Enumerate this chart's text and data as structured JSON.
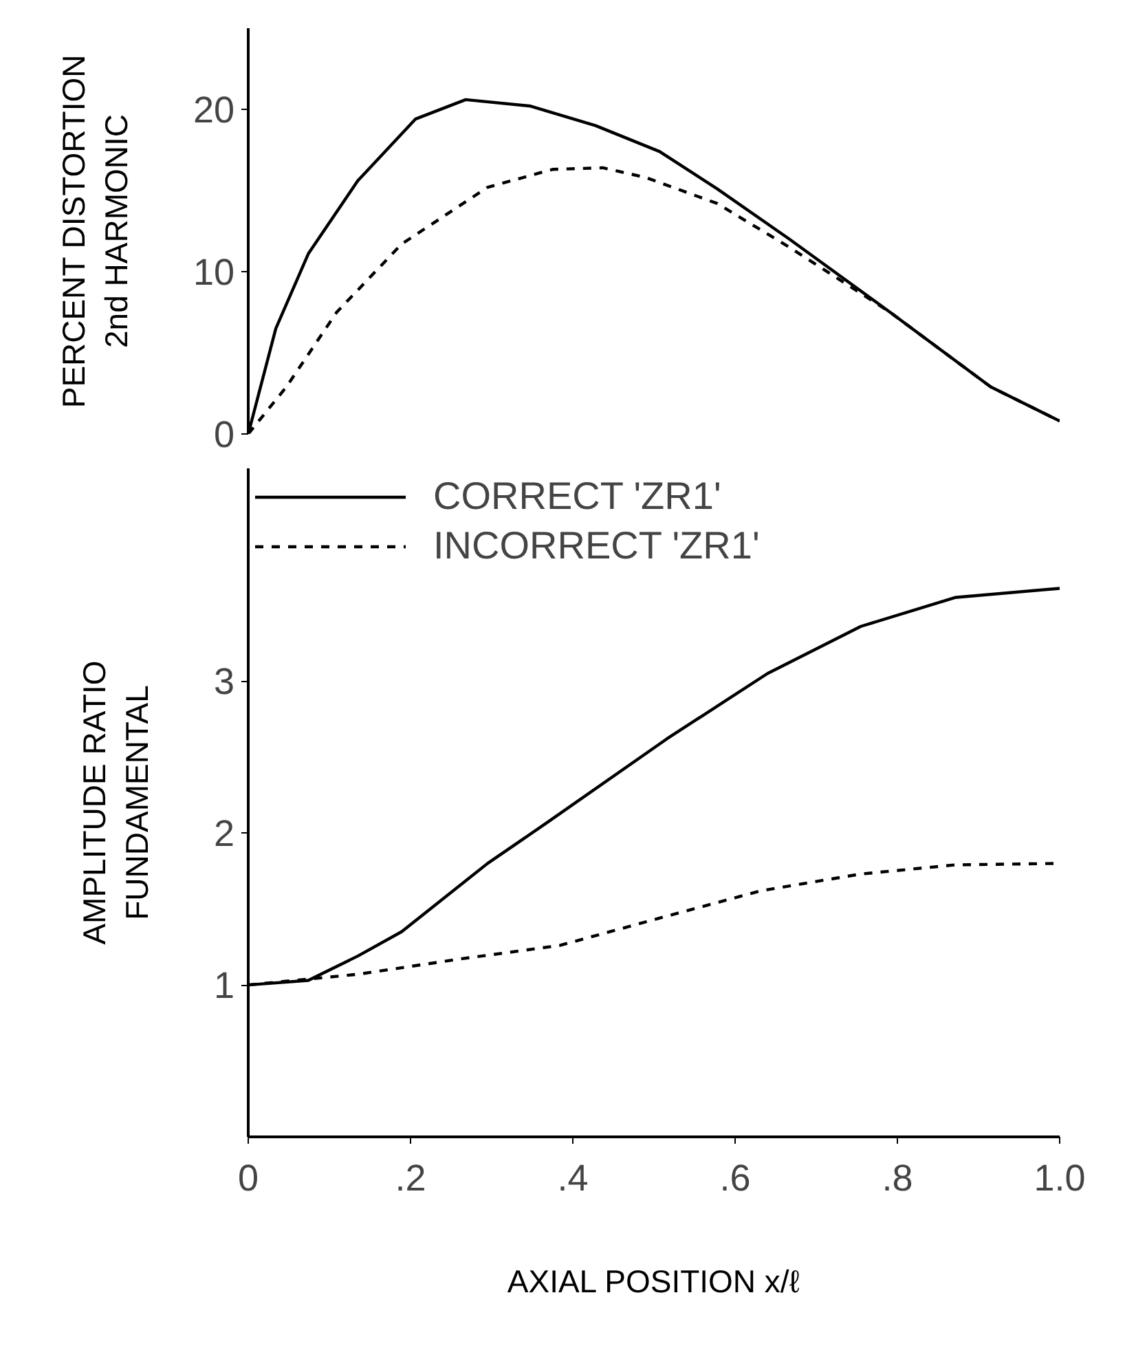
{
  "chart_data": [
    {
      "type": "line",
      "ylabel": "PERCENT DISTORTION\n2nd HARMONIC",
      "xlim": [
        0,
        1.0
      ],
      "ylim": [
        0,
        25
      ],
      "yticks": [
        0,
        10,
        20
      ],
      "tick_labels": "y",
      "grid": false,
      "marker": "none",
      "series": [
        {
          "color": "#000000",
          "line_style": "solid",
          "x": [
            0,
            0.034,
            0.074,
            0.135,
            0.206,
            0.268,
            0.348,
            0.428,
            0.507,
            0.578,
            0.667,
            0.791,
            0.915,
            1.0
          ],
          "values": [
            0,
            6.5,
            11.1,
            15.6,
            19.4,
            20.6,
            20.2,
            19.0,
            17.4,
            15.1,
            12.0,
            7.5,
            2.9,
            0.8
          ]
        },
        {
          "color": "#000000",
          "line_style": "dashed",
          "x": [
            0,
            0.047,
            0.109,
            0.189,
            0.295,
            0.375,
            0.437,
            0.49,
            0.578,
            0.667,
            0.791,
            0.915,
            1.0
          ],
          "values": [
            0,
            2.9,
            7.5,
            11.7,
            15.2,
            16.3,
            16.4,
            15.8,
            14.2,
            11.5,
            7.5,
            2.9,
            0.8
          ]
        }
      ]
    },
    {
      "type": "line",
      "ylabel": "AMPLITUDE RATIO\nFUNDAMENTAL",
      "xlabel": "AXIAL POSITION x/ℓ",
      "xlim": [
        0,
        1.0
      ],
      "ylim": [
        0,
        4.4
      ],
      "yticks": [
        1,
        2,
        3
      ],
      "xticks": [
        0,
        {
          "value": 0.2,
          "label": ".2"
        },
        {
          "value": 0.4,
          "label": ".4"
        },
        {
          "value": 0.6,
          "label": ".6"
        },
        {
          "value": 0.8,
          "label": ".8"
        },
        {
          "value": 1.0,
          "label": "1.0"
        }
      ],
      "grid": false,
      "marker": "none",
      "legend": "top left",
      "series": [
        {
          "name": "CORRECT 'ZR1'",
          "color": "#000000",
          "line_style": "solid",
          "x": [
            0,
            0.074,
            0.135,
            0.189,
            0.295,
            0.366,
            0.516,
            0.64,
            0.755,
            0.871,
            1.0
          ],
          "values": [
            1.0,
            1.03,
            1.19,
            1.35,
            1.8,
            2.06,
            2.62,
            3.05,
            3.36,
            3.55,
            3.61
          ]
        },
        {
          "name": "INCORRECT 'ZR1'",
          "color": "#000000",
          "line_style": "dashed",
          "x": [
            0,
            0.135,
            0.26,
            0.384,
            0.507,
            0.632,
            0.755,
            0.871,
            1.0
          ],
          "values": [
            1.0,
            1.07,
            1.17,
            1.26,
            1.44,
            1.62,
            1.73,
            1.79,
            1.8
          ]
        }
      ]
    }
  ]
}
